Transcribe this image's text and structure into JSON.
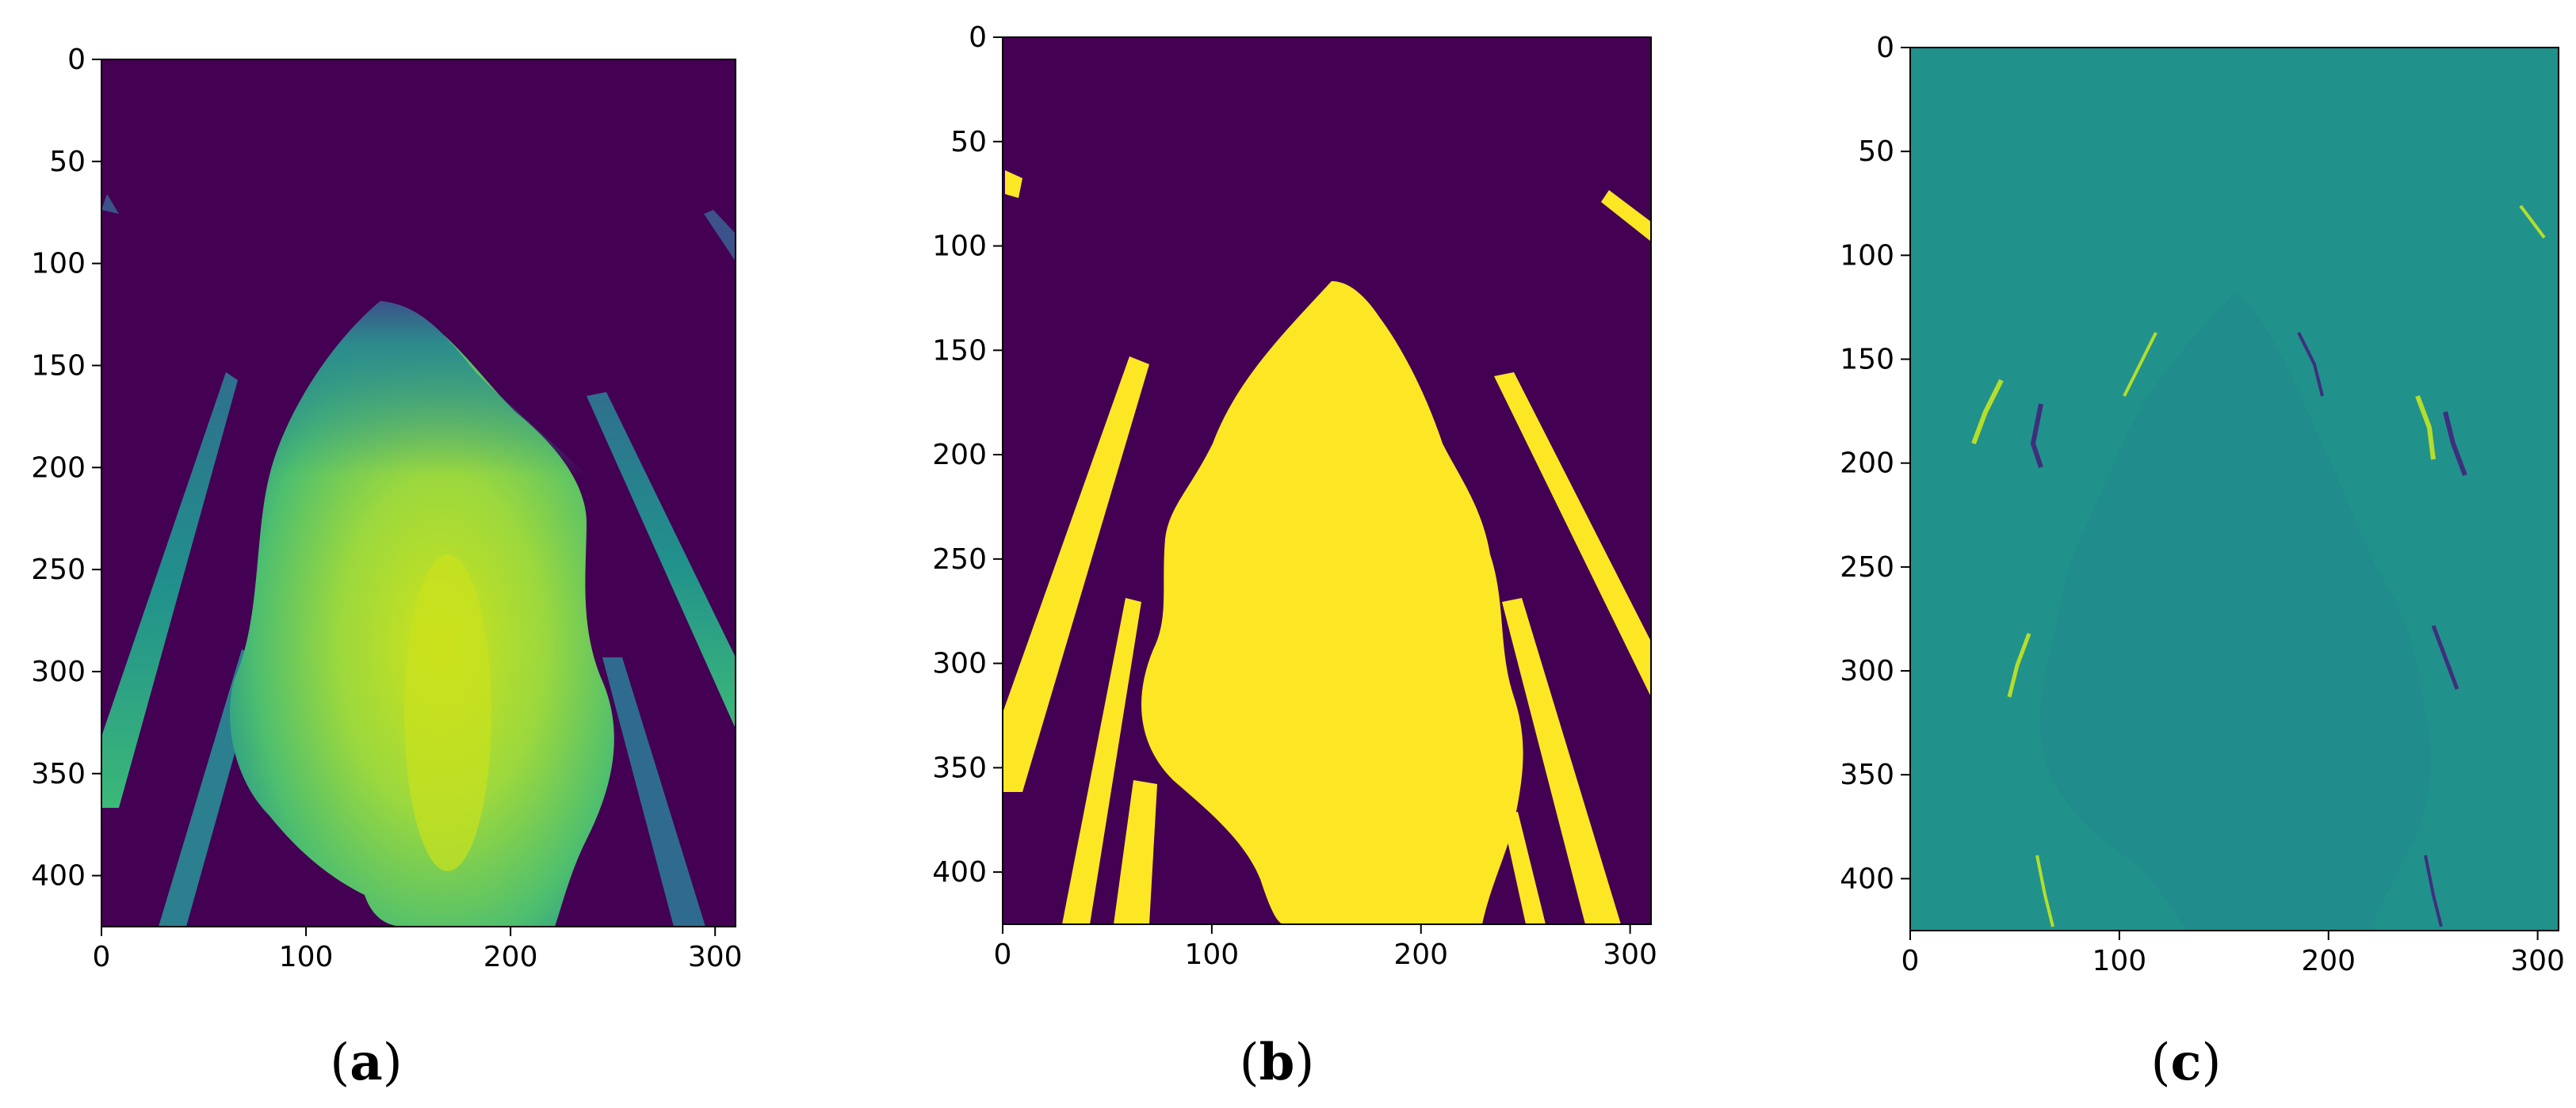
{
  "chart_data": [
    {
      "type": "heatmap",
      "panel": "a",
      "caption": {
        "open": "(",
        "letter": "a",
        "close": ")"
      },
      "colormap": "viridis",
      "description_values": "continuous depth image of an udder with four teat-like stripes",
      "xlim": [
        0,
        310
      ],
      "ylim": [
        425,
        0
      ],
      "x_ticks": [
        0,
        100,
        200,
        300
      ],
      "y_ticks": [
        0,
        50,
        100,
        150,
        200,
        250,
        300,
        350,
        400
      ],
      "x_tick_labels": [
        "0",
        "100",
        "200",
        "300"
      ],
      "y_tick_labels": [
        "0",
        "50",
        "100",
        "150",
        "200",
        "250",
        "300",
        "350",
        "400"
      ]
    },
    {
      "type": "heatmap",
      "panel": "b",
      "caption": {
        "open": "(",
        "letter": "b",
        "close": ")"
      },
      "colormap": "binary viridis",
      "xlim": [
        0,
        310
      ],
      "ylim": [
        425,
        0
      ],
      "x_ticks": [
        0,
        100,
        200,
        300
      ],
      "y_ticks": [
        0,
        50,
        100,
        150,
        200,
        250,
        300,
        350,
        400
      ],
      "x_tick_labels": [
        "0",
        "100",
        "200",
        "300"
      ],
      "y_tick_labels": [
        "0",
        "50",
        "100",
        "150",
        "200",
        "250",
        "300",
        "350",
        "400"
      ]
    },
    {
      "type": "heatmap",
      "panel": "c",
      "caption": {
        "open": "(",
        "letter": "c",
        "close": ")"
      },
      "colormap": "viridis gradient",
      "xlim": [
        0,
        310
      ],
      "ylim": [
        425,
        0
      ],
      "x_ticks": [
        0,
        100,
        200,
        300
      ],
      "y_ticks": [
        0,
        50,
        100,
        150,
        200,
        250,
        300,
        350,
        400
      ],
      "x_tick_labels": [
        "0",
        "100",
        "200",
        "300"
      ],
      "y_tick_labels": [
        "0",
        "50",
        "100",
        "150",
        "200",
        "250",
        "300",
        "350",
        "400"
      ]
    }
  ],
  "colors": {
    "background_dark": "#440154",
    "mask_yellow": "#fde725",
    "gradient_teal": "#21918c",
    "stripe_teal": "#2a8a8b",
    "udder_green": "#8fd14f",
    "udder_center": "#c8e020"
  }
}
